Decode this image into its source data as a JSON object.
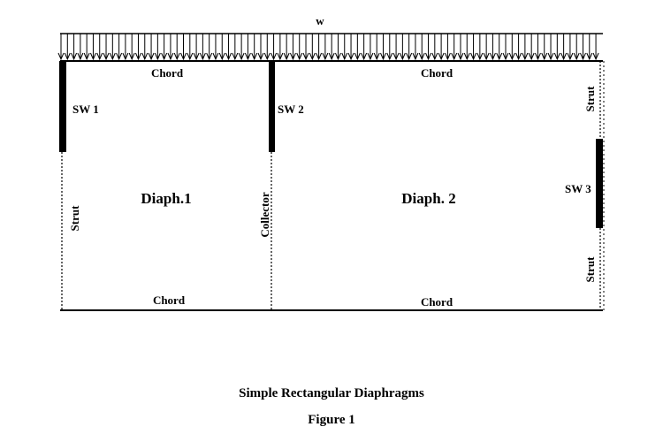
{
  "load_label": "w",
  "diaphragms": [
    {
      "title": "Diaph.1",
      "chord_top": "Chord",
      "chord_bottom": "Chord",
      "shear_wall": "SW 1",
      "strut": "Strut"
    },
    {
      "title": "Diaph. 2",
      "chord_top": "Chord",
      "chord_bottom": "Chord",
      "shear_wall_left": "SW 2",
      "shear_wall_right": "SW 3",
      "collector": "Collector",
      "strut_upper": "Strut",
      "strut_lower": "Strut"
    }
  ],
  "caption": {
    "title": "Simple Rectangular Diaphragms",
    "figure": "Figure 1"
  }
}
